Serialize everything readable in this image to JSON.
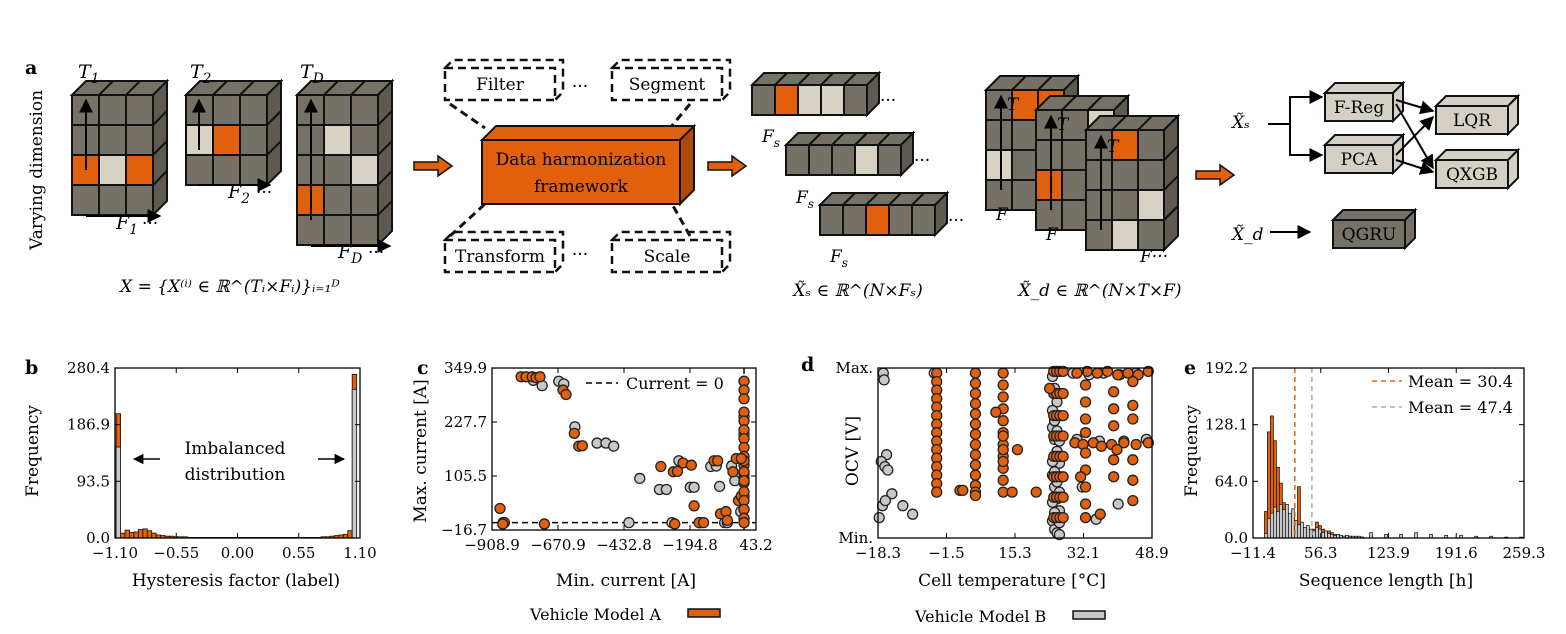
{
  "colors": {
    "orange": "#e0600e",
    "gray": "#c8c8c8",
    "cube_face": "#767166",
    "cube_light": "#d8d2c4",
    "box_fill": "#d4d0c6"
  },
  "panel_a": {
    "label": "a",
    "ylabel": "Varying dimension",
    "time_labels": [
      "T",
      "T",
      "T"
    ],
    "time_subs": [
      "1",
      "2",
      "D"
    ],
    "feat_labels": [
      "F",
      "F",
      "F"
    ],
    "feat_subs": [
      "1",
      "2",
      "D"
    ],
    "ellipsis": "···",
    "set_formula": "X = {X⁽ⁱ⁾ ∈ ℝ^(Tᵢ×Fᵢ)}ᵢ₌₁ᴰ",
    "filter": "Filter",
    "segment": "Segment",
    "transform": "Transform",
    "scale": "Scale",
    "framework_line1": "Data harmonization",
    "framework_line2": "framework",
    "fs_label": "F",
    "fs_sub": "s",
    "xs_formula": "X̃ₛ ∈ ℝ^(N×Fₛ)",
    "xd_formula": "X̃_d ∈ ℝ^(N×T×F)",
    "t_label": "T",
    "f_label": "F",
    "xs_sym": "X̃ₛ",
    "xd_sym": "X̃_d",
    "models": {
      "freg": "F-Reg",
      "pca": "PCA",
      "lqr": "LQR",
      "qxgb": "QXGB",
      "qgru": "QGRU"
    }
  },
  "panel_b": {
    "label": "b",
    "xlabel": "Hysteresis factor (label)",
    "ylabel": "Frequency",
    "xticks": [
      "−1.10",
      "−0.55",
      "0.00",
      "0.55",
      "1.10"
    ],
    "yticks": [
      "0.0",
      "93.5",
      "186.9",
      "280.4"
    ],
    "annotation_line1": "Imbalanced",
    "annotation_line2": "distribution"
  },
  "panel_c": {
    "label": "c",
    "xlabel": "Min. current [A]",
    "ylabel": "Max. current [A]",
    "xticks": [
      "−908.9",
      "−670.9",
      "−432.8",
      "−194.8",
      "43.2"
    ],
    "yticks": [
      "−16.7",
      "105.5",
      "227.7",
      "349.9"
    ],
    "legend": "Current = 0"
  },
  "panel_d": {
    "label": "d",
    "xlabel": "Cell temperature [°C]",
    "ylabel": "OCV [V]",
    "xticks": [
      "−18.3",
      "−1.5",
      "15.3",
      "32.1",
      "48.9"
    ],
    "yticks": [
      "Min.",
      "Max."
    ]
  },
  "panel_e": {
    "label": "e",
    "xlabel": "Sequence length [h]",
    "ylabel": "Frequency",
    "xticks": [
      "−11.4",
      "56.3",
      "123.9",
      "191.6",
      "259.3"
    ],
    "yticks": [
      "0.0",
      "64.0",
      "128.1",
      "192.2"
    ],
    "legend_a": "Mean = 30.4",
    "legend_b": "Mean = 47.4"
  },
  "legend": {
    "model_a": "Vehicle Model A",
    "model_b": "Vehicle Model B"
  },
  "chart_data": [
    {
      "panel": "b",
      "type": "bar",
      "xlim": [
        -1.1,
        1.1
      ],
      "ylim": [
        0,
        280.4
      ],
      "series": [
        {
          "name": "Vehicle Model A",
          "x": [
            -1.07,
            -1.03,
            -0.99,
            -0.95,
            -0.91,
            -0.87,
            -0.83,
            -0.79,
            -0.75,
            -0.71,
            -0.67,
            -0.63,
            -0.59,
            -0.55,
            -0.51,
            -0.47,
            -0.43,
            -0.39,
            -0.35,
            -0.31,
            -0.27,
            -0.23,
            -0.19,
            -0.15,
            -0.11,
            -0.07,
            -0.03,
            0.01,
            0.05,
            0.09,
            0.13,
            0.17,
            0.21,
            0.25,
            0.29,
            0.33,
            0.37,
            0.41,
            0.45,
            0.49,
            0.53,
            0.57,
            0.61,
            0.65,
            0.69,
            0.73,
            0.77,
            0.81,
            0.85,
            0.89,
            0.93,
            0.97,
            1.01,
            1.05,
            1.09
          ],
          "values": [
            205,
            8,
            13,
            9,
            10,
            14,
            15,
            12,
            8,
            5,
            4,
            3,
            3,
            2,
            2,
            2,
            1,
            1,
            1,
            1,
            1,
            1,
            1,
            1,
            1,
            1,
            1,
            1,
            1,
            1,
            1,
            1,
            1,
            1,
            1,
            1,
            1,
            1,
            1,
            1,
            1,
            1,
            1,
            1,
            1,
            1,
            2,
            2,
            3,
            4,
            5,
            6,
            12,
            270,
            0
          ]
        },
        {
          "name": "Vehicle Model B",
          "x": [
            -1.07,
            1.05
          ],
          "values": [
            150,
            245
          ]
        }
      ]
    },
    {
      "panel": "c",
      "type": "scatter",
      "xlim": [
        -908.9,
        43.2
      ],
      "ylim": [
        -16.7,
        349.9
      ],
      "series": [
        {
          "name": "Vehicle Model A",
          "x": [
            -880,
            -864,
            -804,
            -786,
            -764,
            -750,
            -736,
            -653,
            -642,
            -612,
            -596,
            -583,
            -300,
            -255,
            -240,
            -220,
            -190,
            -162,
            -146,
            -108,
            -95,
            -85,
            -65,
            -40,
            -28,
            -20,
            -10,
            0,
            0,
            0,
            0,
            0,
            0,
            0,
            0,
            0,
            0,
            0,
            0,
            0,
            0,
            0,
            0,
            0,
            0,
            0,
            0,
            -870,
            -720,
            -250,
            -180,
            -60,
            -10
          ],
          "y": [
            32,
            0,
            330,
            330,
            330,
            328,
            330,
            300,
            290,
            202,
            173,
            174,
            127,
            115,
            116,
            135,
            130,
            0,
            0,
            140,
            140,
            20,
            25,
            115,
            145,
            50,
            60,
            320,
            300,
            280,
            250,
            230,
            210,
            190,
            170,
            150,
            130,
            110,
            90,
            70,
            50,
            30,
            10,
            0,
            140,
            115,
            95,
            -3,
            -3,
            -3,
            38,
            5,
            145
          ]
        },
        {
          "name": "Vehicle Model B",
          "x": [
            -869,
            -760,
            -728,
            -668,
            -650,
            -610,
            -530,
            -498,
            -470,
            -415,
            -376,
            -305,
            -280,
            -260,
            -235,
            -194,
            -180,
            -160,
            -155,
            -120,
            -100,
            -88,
            -70,
            -60,
            -45,
            -33,
            -12,
            0,
            0,
            0,
            0,
            0,
            0,
            0,
            0
          ],
          "y": [
            0,
            322,
            310,
            320,
            314,
            217,
            180,
            180,
            173,
            0,
            100,
            75,
            75,
            0,
            140,
            80,
            80,
            0,
            0,
            127,
            128,
            82,
            0,
            0,
            128,
            95,
            25,
            320,
            240,
            200,
            140,
            100,
            60,
            30,
            0
          ]
        }
      ]
    },
    {
      "panel": "d",
      "type": "scatter",
      "xlim": [
        -18.3,
        48.9
      ],
      "ylim": [
        "Min.",
        "Max."
      ],
      "series": [
        {
          "name": "Vehicle Model A",
          "x": [
            -3.9,
            -3.9,
            -3.9,
            -3.9,
            -3.9,
            -3.9,
            -3.9,
            -3.9,
            -3.9,
            -3.9,
            -3.9,
            -3.9,
            -3.9,
            -3.9,
            -3.9,
            5.6,
            5.6,
            5.6,
            5.6,
            5.6,
            5.6,
            5.6,
            5.6,
            5.6,
            5.6,
            5.6,
            5.6,
            5.6,
            5.6,
            12.4,
            12.4,
            12.4,
            12.4,
            12.4,
            12.4,
            12.4,
            12.4,
            12.4,
            12.4,
            12.4,
            12.4,
            12.4,
            12.4,
            24.8,
            25.5,
            26.3,
            27.1,
            24.8,
            25.5,
            26.3,
            27.1,
            24.8,
            25.5,
            26.3,
            27.1,
            24.8,
            25.5,
            26.3,
            27.1,
            24.8,
            25.5,
            26.3,
            27.1,
            24.8,
            25.5,
            26.3,
            27.1,
            24.8,
            25.5,
            26.3,
            27.1,
            24.8,
            25.5,
            26.3,
            27.1,
            30.5,
            33.0,
            35.5,
            38.0,
            40.5,
            43.0,
            45.5,
            48.0,
            30.0,
            32.0,
            34.5,
            36.5,
            39.0,
            42.0,
            45.0,
            48.0,
            32.6,
            32.6,
            32.6,
            32.6,
            32.6,
            32.6,
            32.6,
            32.6,
            32.6,
            39.5,
            39.5,
            39.5,
            39.5,
            39.5,
            44.2,
            44.2,
            44.2,
            44.2,
            44.2,
            44.2,
            1.8,
            2.5,
            10.6,
            14.6,
            15.9,
            20.5,
            23.8,
            31.4,
            36.2,
            40.3
          ],
          "y": [
            0.97,
            0.92,
            0.87,
            0.82,
            0.77,
            0.72,
            0.67,
            0.62,
            0.57,
            0.52,
            0.47,
            0.42,
            0.37,
            0.32,
            0.27,
            0.97,
            0.91,
            0.85,
            0.79,
            0.73,
            0.67,
            0.61,
            0.55,
            0.49,
            0.43,
            0.37,
            0.31,
            0.27,
            0.25,
            0.97,
            0.9,
            0.83,
            0.76,
            0.69,
            0.62,
            0.55,
            0.48,
            0.41,
            0.34,
            0.27,
            0.52,
            0.45,
            0.6,
            0.98,
            0.98,
            0.98,
            0.98,
            0.85,
            0.85,
            0.85,
            0.85,
            0.72,
            0.72,
            0.72,
            0.72,
            0.6,
            0.6,
            0.6,
            0.6,
            0.48,
            0.48,
            0.48,
            0.48,
            0.36,
            0.36,
            0.36,
            0.36,
            0.24,
            0.24,
            0.24,
            0.24,
            0.12,
            0.12,
            0.12,
            0.12,
            0.97,
            0.98,
            0.97,
            0.98,
            0.96,
            0.97,
            0.96,
            0.98,
            0.56,
            0.55,
            0.56,
            0.54,
            0.55,
            0.56,
            0.55,
            0.56,
            0.9,
            0.8,
            0.7,
            0.62,
            0.5,
            0.4,
            0.3,
            0.2,
            0.12,
            0.86,
            0.76,
            0.66,
            0.46,
            0.36,
            0.92,
            0.78,
            0.7,
            0.46,
            0.34,
            0.22,
            0.28,
            0.28,
            0.74,
            0.27,
            0.52,
            0.27,
            0.88,
            0.36,
            0.14,
            0.52
          ],
          "series_note": ""
        },
        {
          "name": "Vehicle Model B",
          "x": [
            -17.0,
            -16.8,
            -16.2,
            -17.5,
            -16.6,
            -15.9,
            -14.9,
            -18.0,
            -17.2,
            -16.5,
            -12.2,
            -9.8,
            -4.5,
            24.5,
            25.0,
            25.6,
            26.2,
            24.5,
            25.0,
            25.6,
            26.2,
            24.5,
            25.0,
            25.6,
            26.2,
            24.5,
            25.0,
            25.6,
            26.2,
            24.5,
            25.0,
            25.6,
            26.2,
            24.5,
            25.0,
            25.6,
            26.2,
            24.5,
            25.0,
            25.6,
            26.2,
            29.5,
            33.5,
            37.0,
            41.0,
            45.0,
            30.5,
            36.0,
            42.0,
            47.5,
            31.8,
            35.2,
            40.6
          ],
          "y": [
            0.97,
            0.93,
            0.49,
            0.45,
            0.42,
            0.4,
            0.26,
            0.12,
            0.19,
            0.22,
            0.19,
            0.14,
            0.97,
            0.95,
            0.88,
            0.8,
            0.72,
            0.65,
            0.58,
            0.51,
            0.44,
            0.37,
            0.3,
            0.23,
            0.16,
            0.1,
            0.05,
            0.03,
            0.02,
            0.75,
            0.69,
            0.63,
            0.57,
            0.45,
            0.39,
            0.33,
            0.27,
            0.21,
            0.15,
            0.11,
            0.09,
            0.97,
            0.96,
            0.97,
            0.96,
            0.97,
            0.58,
            0.57,
            0.57,
            0.58,
            0.3,
            0.11,
            0.2
          ]
        }
      ]
    },
    {
      "panel": "e",
      "type": "bar",
      "xlim": [
        -11.4,
        259.3
      ],
      "ylim": [
        0,
        192.2
      ],
      "series": [
        {
          "name": "Vehicle Model A",
          "x": [
            0,
            3,
            6,
            9,
            12,
            15,
            18,
            21,
            24,
            27,
            30,
            33,
            36,
            39,
            42,
            45,
            48,
            51,
            54,
            57,
            60,
            63,
            66,
            69,
            72,
            75,
            78,
            81,
            84,
            87,
            90,
            93,
            96
          ],
          "values": [
            30,
            120,
            138,
            110,
            80,
            62,
            40,
            22,
            12,
            22,
            6,
            58,
            4,
            2,
            3,
            6,
            10,
            18,
            14,
            10,
            4,
            8,
            6,
            4,
            4,
            3,
            2,
            2,
            2,
            1,
            1,
            1,
            1
          ]
        },
        {
          "name": "Vehicle Model B",
          "x": [
            0,
            3,
            6,
            9,
            12,
            15,
            18,
            21,
            24,
            27,
            30,
            33,
            36,
            39,
            42,
            45,
            48,
            51,
            54,
            57,
            60,
            63,
            66,
            69,
            72,
            75,
            78,
            81,
            84,
            87,
            90,
            93,
            96,
            105,
            120,
            135,
            150,
            165,
            180,
            195,
            210,
            225,
            240,
            255
          ],
          "values": [
            5,
            22,
            28,
            35,
            30,
            38,
            32,
            38,
            28,
            33,
            20,
            15,
            18,
            12,
            14,
            10,
            8,
            12,
            10,
            6,
            8,
            5,
            4,
            3,
            4,
            3,
            2,
            3,
            2,
            2,
            2,
            2,
            1,
            6,
            4,
            4,
            6,
            4,
            3,
            3,
            2,
            2,
            1,
            1
          ]
        }
      ],
      "means": [
        30.4,
        47.4
      ]
    }
  ]
}
